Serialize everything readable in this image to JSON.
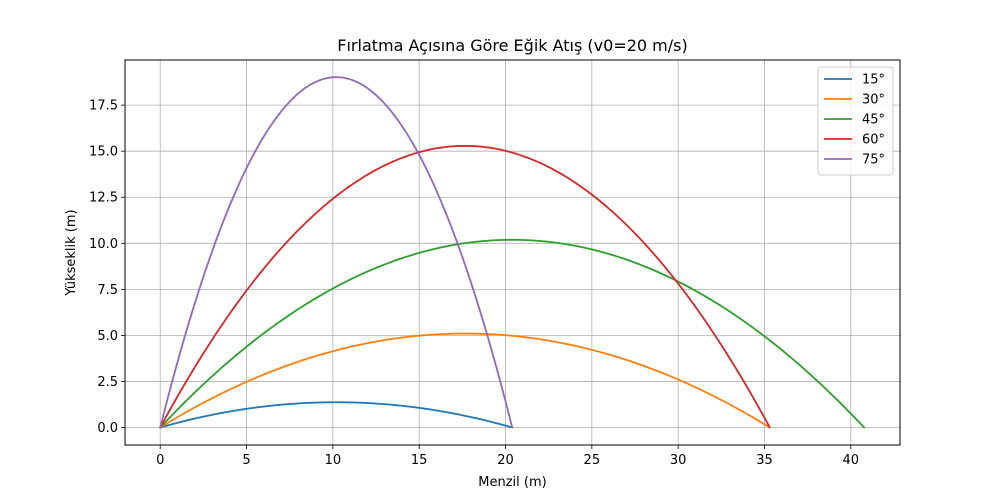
{
  "chart_data": {
    "type": "line",
    "title": "Fırlatma Açısına Göre Eğik Atış (v0=20 m/s)",
    "xlabel": "Menzil (m)",
    "ylabel": "Yükseklik (m)",
    "xlim": [
      -2.04,
      42.85
    ],
    "ylim": [
      -0.95,
      19.95
    ],
    "xticks": [
      0,
      5,
      10,
      15,
      20,
      25,
      30,
      35,
      40
    ],
    "xtick_labels": [
      "0",
      "5",
      "10",
      "15",
      "20",
      "25",
      "30",
      "35",
      "40"
    ],
    "yticks": [
      0,
      2.5,
      5,
      7.5,
      10,
      12.5,
      15,
      17.5
    ],
    "ytick_labels": [
      "0.0",
      "2.5",
      "5.0",
      "7.5",
      "10.0",
      "12.5",
      "15.0",
      "17.5"
    ],
    "grid": true,
    "legend": {
      "position": "top-right"
    },
    "series": [
      {
        "name": "15°",
        "color": "#1f77b4",
        "range": 20.39,
        "max_height": 1.37
      },
      {
        "name": "30°",
        "color": "#ff7f0e",
        "range": 35.31,
        "max_height": 5.1
      },
      {
        "name": "45°",
        "color": "#2ca02c",
        "range": 40.77,
        "max_height": 10.19
      },
      {
        "name": "60°",
        "color": "#d62728",
        "range": 35.31,
        "max_height": 15.29
      },
      {
        "name": "75°",
        "color": "#9467bd",
        "range": 20.39,
        "max_height": 19.02
      }
    ]
  }
}
